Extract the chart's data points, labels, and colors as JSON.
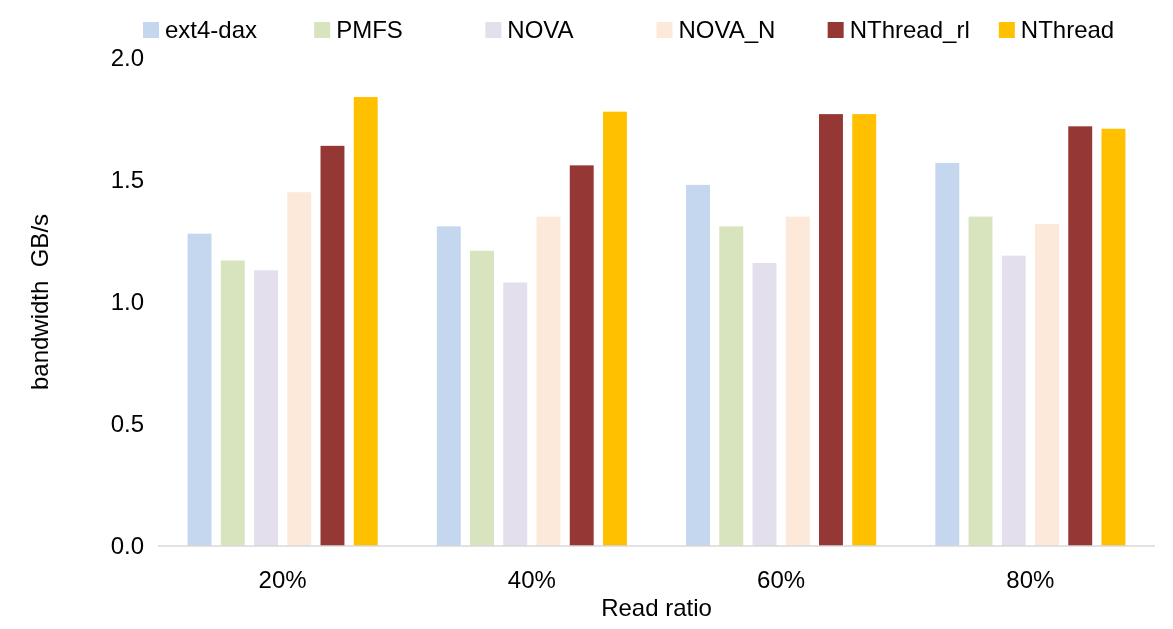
{
  "chart_data": {
    "type": "bar",
    "xlabel": "Read ratio",
    "ylabel": "bandwidth  GB/s",
    "categories": [
      "20%",
      "40%",
      "60%",
      "80%"
    ],
    "series": [
      {
        "name": "ext4-dax",
        "color": "#c5d7ee",
        "values": [
          1.28,
          1.31,
          1.48,
          1.57
        ]
      },
      {
        "name": "PMFS",
        "color": "#d7e4bd",
        "values": [
          1.17,
          1.21,
          1.31,
          1.35
        ]
      },
      {
        "name": "NOVA",
        "color": "#e4dfec",
        "values": [
          1.13,
          1.08,
          1.16,
          1.19
        ]
      },
      {
        "name": "NOVA_N",
        "color": "#fde9d9",
        "values": [
          1.45,
          1.35,
          1.35,
          1.32
        ]
      },
      {
        "name": "NThread_rl",
        "color": "#953735",
        "values": [
          1.64,
          1.56,
          1.77,
          1.72
        ]
      },
      {
        "name": "NThread",
        "color": "#ffc000",
        "values": [
          1.84,
          1.78,
          1.77,
          1.71
        ]
      }
    ],
    "ylim": [
      0,
      2.0
    ],
    "yticks": [
      {
        "value": 0,
        "label": "0.0"
      },
      {
        "value": 0.5,
        "label": "0.5"
      },
      {
        "value": 1,
        "label": "1.0"
      },
      {
        "value": 1.5,
        "label": "1.5"
      },
      {
        "value": 2,
        "label": "2.0"
      }
    ],
    "grid": false,
    "legend": "top"
  }
}
